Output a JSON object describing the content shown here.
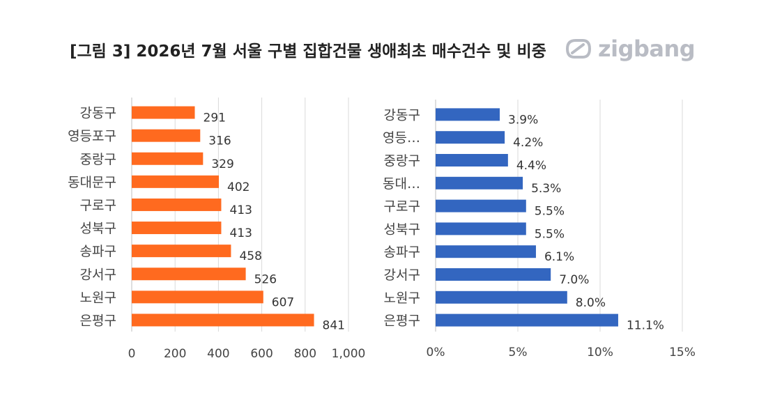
{
  "title": "[그림 3] 2026년 7월 서울 구별 집합건물 생애최초 매수건수 및 비중",
  "logo": {
    "text": "zigbang",
    "icon": "zigbang-logo-icon"
  },
  "chart_data": [
    {
      "type": "bar",
      "orientation": "horizontal",
      "categories": [
        "강동구",
        "영등포구",
        "중랑구",
        "동대문구",
        "구로구",
        "성북구",
        "송파구",
        "강서구",
        "노원구",
        "은평구"
      ],
      "values": [
        291,
        316,
        329,
        402,
        413,
        413,
        458,
        526,
        607,
        841
      ],
      "value_labels": [
        "291",
        "316",
        "329",
        "402",
        "413",
        "413",
        "458",
        "526",
        "607",
        "841"
      ],
      "xlim": [
        0,
        1000
      ],
      "xticks": [
        0,
        200,
        400,
        600,
        800,
        1000
      ],
      "xtick_labels": [
        "0",
        "200",
        "400",
        "600",
        "800",
        "1,000"
      ],
      "color": "#ff6a1f",
      "grid": true
    },
    {
      "type": "bar",
      "orientation": "horizontal",
      "categories": [
        "강동구",
        "영등…",
        "중랑구",
        "동대…",
        "구로구",
        "성북구",
        "송파구",
        "강서구",
        "노원구",
        "은평구"
      ],
      "values": [
        3.9,
        4.2,
        4.4,
        5.3,
        5.5,
        5.5,
        6.1,
        7.0,
        8.0,
        11.1
      ],
      "value_labels": [
        "3.9%",
        "4.2%",
        "4.4%",
        "5.3%",
        "5.5%",
        "5.5%",
        "6.1%",
        "7.0%",
        "8.0%",
        "11.1%"
      ],
      "xlim": [
        0,
        15
      ],
      "xticks": [
        0,
        5,
        10,
        15
      ],
      "xtick_labels": [
        "0%",
        "5%",
        "10%",
        "15%"
      ],
      "color": "#3366c0",
      "grid": true
    }
  ]
}
